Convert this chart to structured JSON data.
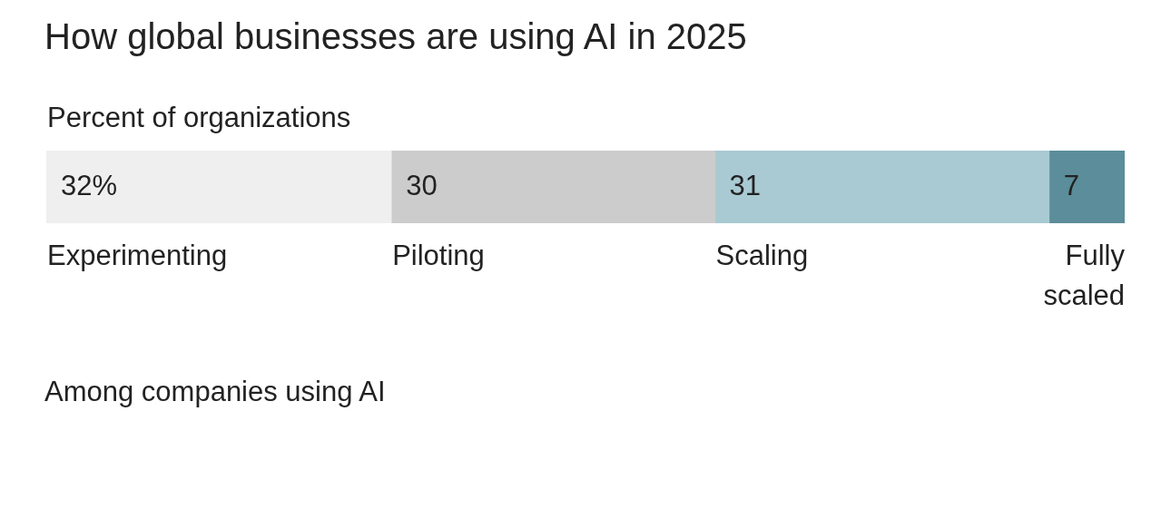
{
  "chart_data": {
    "type": "bar",
    "orientation": "horizontal",
    "stacked": true,
    "title": "How global businesses are using AI in 2025",
    "subtitle": "Percent of organizations",
    "categories": [
      null
    ],
    "xlim": [
      0,
      100
    ],
    "tick_labels": false,
    "legend": false,
    "series": [
      {
        "name": "Experimenting",
        "color": "#efefef",
        "values": [
          32
        ],
        "value_labels": [
          "32%"
        ]
      },
      {
        "name": "Piloting",
        "color": "#cccccc",
        "values": [
          30
        ],
        "value_labels": [
          "30"
        ]
      },
      {
        "name": "Scaling",
        "color": "#a9cad3",
        "values": [
          31
        ],
        "value_labels": [
          "31"
        ]
      },
      {
        "name": "Fully scaled",
        "color": "#5b8d9a",
        "values": [
          7
        ],
        "value_labels": [
          "7"
        ]
      }
    ],
    "annotations": [
      "Among companies using AI"
    ]
  }
}
